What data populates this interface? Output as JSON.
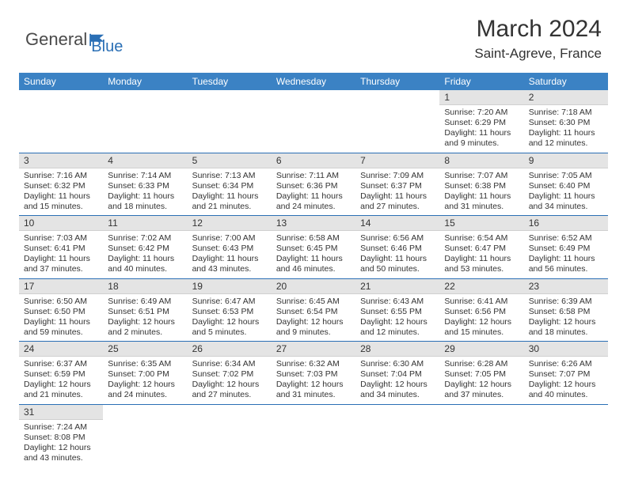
{
  "logo": {
    "textA": "General",
    "textB": "Blue"
  },
  "title": "March 2024",
  "location": "Saint-Agreve, France",
  "colors": {
    "header_bg": "#3b82c4",
    "header_text": "#ffffff",
    "daynum_bg": "#e4e4e4",
    "cell_border": "#2a6fb5",
    "logo_gray": "#4a4a4a",
    "logo_blue": "#2a6fb5",
    "text": "#333333",
    "page_bg": "#ffffff"
  },
  "weekdays": [
    "Sunday",
    "Monday",
    "Tuesday",
    "Wednesday",
    "Thursday",
    "Friday",
    "Saturday"
  ],
  "days": [
    {
      "n": 1,
      "sunrise": "7:20 AM",
      "sunset": "6:29 PM",
      "daylight": "11 hours and 9 minutes."
    },
    {
      "n": 2,
      "sunrise": "7:18 AM",
      "sunset": "6:30 PM",
      "daylight": "11 hours and 12 minutes."
    },
    {
      "n": 3,
      "sunrise": "7:16 AM",
      "sunset": "6:32 PM",
      "daylight": "11 hours and 15 minutes."
    },
    {
      "n": 4,
      "sunrise": "7:14 AM",
      "sunset": "6:33 PM",
      "daylight": "11 hours and 18 minutes."
    },
    {
      "n": 5,
      "sunrise": "7:13 AM",
      "sunset": "6:34 PM",
      "daylight": "11 hours and 21 minutes."
    },
    {
      "n": 6,
      "sunrise": "7:11 AM",
      "sunset": "6:36 PM",
      "daylight": "11 hours and 24 minutes."
    },
    {
      "n": 7,
      "sunrise": "7:09 AM",
      "sunset": "6:37 PM",
      "daylight": "11 hours and 27 minutes."
    },
    {
      "n": 8,
      "sunrise": "7:07 AM",
      "sunset": "6:38 PM",
      "daylight": "11 hours and 31 minutes."
    },
    {
      "n": 9,
      "sunrise": "7:05 AM",
      "sunset": "6:40 PM",
      "daylight": "11 hours and 34 minutes."
    },
    {
      "n": 10,
      "sunrise": "7:03 AM",
      "sunset": "6:41 PM",
      "daylight": "11 hours and 37 minutes."
    },
    {
      "n": 11,
      "sunrise": "7:02 AM",
      "sunset": "6:42 PM",
      "daylight": "11 hours and 40 minutes."
    },
    {
      "n": 12,
      "sunrise": "7:00 AM",
      "sunset": "6:43 PM",
      "daylight": "11 hours and 43 minutes."
    },
    {
      "n": 13,
      "sunrise": "6:58 AM",
      "sunset": "6:45 PM",
      "daylight": "11 hours and 46 minutes."
    },
    {
      "n": 14,
      "sunrise": "6:56 AM",
      "sunset": "6:46 PM",
      "daylight": "11 hours and 50 minutes."
    },
    {
      "n": 15,
      "sunrise": "6:54 AM",
      "sunset": "6:47 PM",
      "daylight": "11 hours and 53 minutes."
    },
    {
      "n": 16,
      "sunrise": "6:52 AM",
      "sunset": "6:49 PM",
      "daylight": "11 hours and 56 minutes."
    },
    {
      "n": 17,
      "sunrise": "6:50 AM",
      "sunset": "6:50 PM",
      "daylight": "11 hours and 59 minutes."
    },
    {
      "n": 18,
      "sunrise": "6:49 AM",
      "sunset": "6:51 PM",
      "daylight": "12 hours and 2 minutes."
    },
    {
      "n": 19,
      "sunrise": "6:47 AM",
      "sunset": "6:53 PM",
      "daylight": "12 hours and 5 minutes."
    },
    {
      "n": 20,
      "sunrise": "6:45 AM",
      "sunset": "6:54 PM",
      "daylight": "12 hours and 9 minutes."
    },
    {
      "n": 21,
      "sunrise": "6:43 AM",
      "sunset": "6:55 PM",
      "daylight": "12 hours and 12 minutes."
    },
    {
      "n": 22,
      "sunrise": "6:41 AM",
      "sunset": "6:56 PM",
      "daylight": "12 hours and 15 minutes."
    },
    {
      "n": 23,
      "sunrise": "6:39 AM",
      "sunset": "6:58 PM",
      "daylight": "12 hours and 18 minutes."
    },
    {
      "n": 24,
      "sunrise": "6:37 AM",
      "sunset": "6:59 PM",
      "daylight": "12 hours and 21 minutes."
    },
    {
      "n": 25,
      "sunrise": "6:35 AM",
      "sunset": "7:00 PM",
      "daylight": "12 hours and 24 minutes."
    },
    {
      "n": 26,
      "sunrise": "6:34 AM",
      "sunset": "7:02 PM",
      "daylight": "12 hours and 27 minutes."
    },
    {
      "n": 27,
      "sunrise": "6:32 AM",
      "sunset": "7:03 PM",
      "daylight": "12 hours and 31 minutes."
    },
    {
      "n": 28,
      "sunrise": "6:30 AM",
      "sunset": "7:04 PM",
      "daylight": "12 hours and 34 minutes."
    },
    {
      "n": 29,
      "sunrise": "6:28 AM",
      "sunset": "7:05 PM",
      "daylight": "12 hours and 37 minutes."
    },
    {
      "n": 30,
      "sunrise": "6:26 AM",
      "sunset": "7:07 PM",
      "daylight": "12 hours and 40 minutes."
    },
    {
      "n": 31,
      "sunrise": "7:24 AM",
      "sunset": "8:08 PM",
      "daylight": "12 hours and 43 minutes."
    }
  ],
  "first_weekday_index": 5,
  "labels": {
    "sunrise": "Sunrise:",
    "sunset": "Sunset:",
    "daylight": "Daylight:"
  }
}
